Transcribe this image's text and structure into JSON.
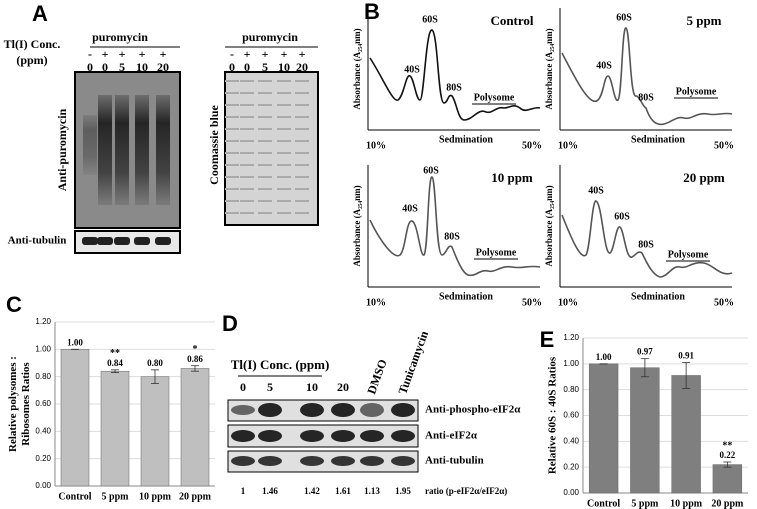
{
  "panel_labels": [
    "A",
    "B",
    "C",
    "D",
    "E"
  ],
  "panel_a": {
    "conc_label": [
      "Tl(I) Conc.",
      "(ppm)"
    ],
    "blots": [
      {
        "header": "puromycin",
        "signs": [
          "-",
          "+",
          "+",
          "+",
          "+"
        ],
        "concs": [
          0,
          0,
          5,
          10,
          20
        ],
        "label": "Anti-puromycin"
      },
      {
        "header": "puromycin",
        "signs": [
          "-",
          "+",
          "+",
          "+",
          "+"
        ],
        "concs": [
          0,
          0,
          5,
          10,
          20
        ],
        "label": "Coomassie blue"
      }
    ],
    "loading_label": "Anti-tubulin"
  },
  "panel_b": {
    "profiles": [
      "Control",
      "5 ppm",
      "10 ppm",
      "20 ppm"
    ],
    "peaks": [
      "40S",
      "60S",
      "80S",
      "Polysome"
    ],
    "xlabel": "Sedmination",
    "x_start": "10%",
    "x_end": "50%",
    "ylabel": "Absorbance (A₂₅₄nm)"
  },
  "panel_d": {
    "conc_label": "Tl(I) Conc. (ppm)",
    "lanes": [
      0,
      5,
      10,
      20,
      "DMSO",
      "Tunicamycin"
    ],
    "rows": [
      "Anti-phospho-eIF2α",
      "Anti-eIF2α",
      "Anti-tubulin"
    ],
    "ratios": [
      1,
      1.46,
      1.42,
      1.61,
      1.13,
      1.95
    ],
    "ratio_label": "ratio (p-eIF2α/eIF2α)"
  },
  "chart_data": [
    {
      "type": "bar",
      "ylabel": [
        "Relative polysomes :",
        "Ribosomes Ratios"
      ],
      "categories": [
        "Control",
        "5 ppm",
        "10 ppm",
        "20 ppm"
      ],
      "values": [
        1.0,
        0.84,
        0.8,
        0.86
      ],
      "value_labels": [
        "1.00",
        "0.84",
        "0.80",
        "0.86"
      ],
      "errors": [
        0,
        0.01,
        0.05,
        0.02
      ],
      "annotations": [
        null,
        "**",
        null,
        "*"
      ],
      "ylim": [
        0,
        1.2
      ],
      "yticks": [
        {
          "value": 0,
          "label": "0.00"
        },
        {
          "value": 0.2,
          "label": "0.20"
        },
        {
          "value": 0.4,
          "label": "0.40"
        },
        {
          "value": 0.6,
          "label": "0.60"
        },
        {
          "value": 0.8,
          "label": "0.80"
        },
        {
          "value": 1.0,
          "label": "1.00"
        },
        {
          "value": 1.2,
          "label": "1.20"
        }
      ],
      "color": "#bfbfbf"
    },
    {
      "type": "bar",
      "ylabel": [
        "Relative 60S : 40S Ratios"
      ],
      "categories": [
        "Control",
        "5 ppm",
        "10 ppm",
        "20 ppm"
      ],
      "values": [
        1.0,
        0.97,
        0.91,
        0.22
      ],
      "value_labels": [
        "1.00",
        "0.97",
        "0.91",
        "0.22"
      ],
      "errors": [
        0,
        0.07,
        0.1,
        0.02
      ],
      "annotations": [
        null,
        null,
        null,
        "**"
      ],
      "ylim": [
        0,
        1.2
      ],
      "yticks": [
        {
          "value": 0,
          "label": "0.00"
        },
        {
          "value": 0.2,
          "label": "0.20"
        },
        {
          "value": 0.4,
          "label": "0.40"
        },
        {
          "value": 0.6,
          "label": "0.60"
        },
        {
          "value": 0.8,
          "label": "0.80"
        },
        {
          "value": 1.0,
          "label": "1.00"
        },
        {
          "value": 1.2,
          "label": "1.20"
        }
      ],
      "color": "#7f7f7f"
    }
  ]
}
